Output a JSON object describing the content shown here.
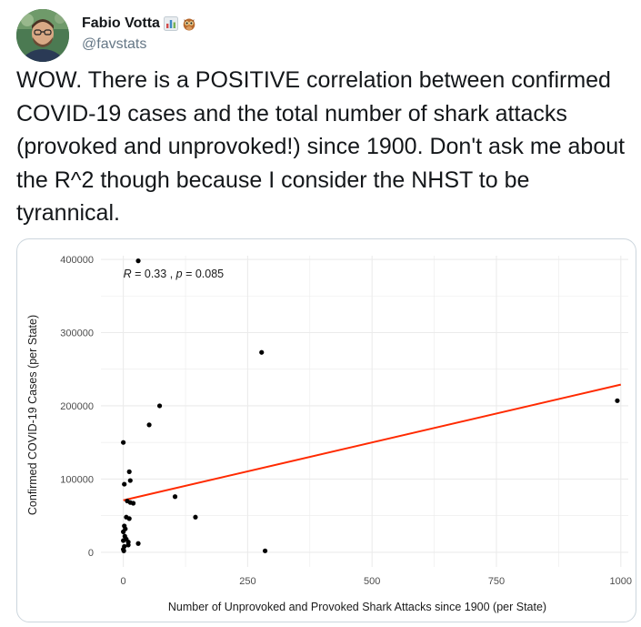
{
  "tweet": {
    "author": {
      "display_name": "Fabio Votta",
      "handle": "@favstats",
      "name_emojis": [
        "bar-chart-icon",
        "owl-icon"
      ]
    },
    "text": "WOW. There is a POSITIVE correlation between confirmed COVID-19 cases and the total number of shark attacks (provoked and unprovoked!) since 1900. Don't ask me about the R^2 though because I consider the NHST to be tyrannical."
  },
  "colors": {
    "regression_line": "#ff2a00",
    "points": "#000000",
    "grid": "#ebebeb",
    "handle": "#657786",
    "card_border": "#ccd6dd"
  },
  "chart_data": {
    "type": "scatter",
    "xlabel": "Number of Unprovoked and Provoked Shark Attacks since 1900 (per State)",
    "ylabel": "Confirmed COVID-19 Cases (per State)",
    "xlim": [
      -45,
      1015
    ],
    "ylim": [
      -20000,
      405000
    ],
    "x_ticks": [
      0,
      250,
      500,
      750,
      1000
    ],
    "x_tick_labels": [
      "0",
      "250",
      "500",
      "750",
      "1000"
    ],
    "y_ticks": [
      0,
      100000,
      200000,
      300000,
      400000
    ],
    "y_tick_labels": [
      "0",
      "100000",
      "200000",
      "300000",
      "400000"
    ],
    "grid": true,
    "annotation": {
      "r_symbol": "R",
      "r_value": " = 0.33 , ",
      "p_symbol": "p",
      "p_value": " = 0.085",
      "x": 0,
      "y": 380000
    },
    "regression": {
      "x": [
        0,
        1000
      ],
      "y": [
        71000,
        229000
      ]
    },
    "points": [
      {
        "x": 30,
        "y": 398000
      },
      {
        "x": 278,
        "y": 273000
      },
      {
        "x": 993,
        "y": 207000
      },
      {
        "x": 73,
        "y": 200000
      },
      {
        "x": 52,
        "y": 174000
      },
      {
        "x": 0,
        "y": 150000
      },
      {
        "x": 12,
        "y": 110000
      },
      {
        "x": 14,
        "y": 98000
      },
      {
        "x": 2,
        "y": 93000
      },
      {
        "x": 104,
        "y": 76000
      },
      {
        "x": 8,
        "y": 70000
      },
      {
        "x": 14,
        "y": 68000
      },
      {
        "x": 20,
        "y": 67000
      },
      {
        "x": 145,
        "y": 48000
      },
      {
        "x": 6,
        "y": 48000
      },
      {
        "x": 12,
        "y": 46000
      },
      {
        "x": 2,
        "y": 36000
      },
      {
        "x": 4,
        "y": 32000
      },
      {
        "x": 0,
        "y": 28000
      },
      {
        "x": 3,
        "y": 22000
      },
      {
        "x": 6,
        "y": 18000
      },
      {
        "x": 0,
        "y": 16000
      },
      {
        "x": 10,
        "y": 14000
      },
      {
        "x": 10,
        "y": 10000
      },
      {
        "x": 30,
        "y": 12000
      },
      {
        "x": 2,
        "y": 8000
      },
      {
        "x": 0,
        "y": 4000
      },
      {
        "x": 1,
        "y": 2000
      },
      {
        "x": 285,
        "y": 2000
      }
    ]
  }
}
